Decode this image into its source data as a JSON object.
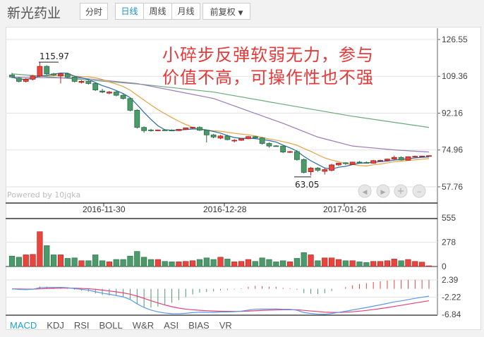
{
  "header": {
    "title": "新光药业",
    "intraday": "分时",
    "daily": "日线",
    "weekly": "周线",
    "monthly": "月线",
    "adjust": "前复权"
  },
  "annotation": {
    "line1": "小碎步反弹软弱无力，参与",
    "line2": "价值不高，可操作性也不强"
  },
  "watermark": "Powered by 10jqka",
  "colors": {
    "up": "#e8453c",
    "down": "#4a9a6a",
    "ma5": "#2a6aa8",
    "ma10": "#e8a040",
    "ma20": "#9a7ab8",
    "ma60": "#6aaa7a",
    "dif": "#5a9ae8",
    "dea": "#e8407a"
  },
  "price_axis": {
    "ticks": [
      "126.55",
      "109.36",
      "92.16",
      "74.96",
      "57.76"
    ],
    "max": 126.55,
    "min": 57.76
  },
  "date_axis": [
    "2016-11-30",
    "2016-12-28",
    "2017-01-26"
  ],
  "high_label": "115.97",
  "low_label": "63.05",
  "volume_axis": {
    "ticks": [
      "555",
      "278",
      "0"
    ]
  },
  "macd_axis": {
    "ticks": [
      "2.39",
      "-2.22",
      "-6.84"
    ]
  },
  "chart_data": {
    "type": "candlestick",
    "ohlc": [
      [
        110,
        111,
        108.5,
        109
      ],
      [
        108.5,
        109,
        106.5,
        107
      ],
      [
        107,
        108.5,
        106.5,
        108
      ],
      [
        108,
        110,
        107.5,
        109.5
      ],
      [
        109.5,
        115.97,
        109,
        114
      ],
      [
        114,
        114.5,
        110,
        110.5
      ],
      [
        110.5,
        111,
        109.5,
        110
      ],
      [
        109.5,
        111,
        106,
        110.5
      ],
      [
        110.5,
        111,
        108.5,
        109
      ],
      [
        109,
        109.5,
        106.5,
        107
      ],
      [
        106.5,
        107.5,
        106,
        107
      ],
      [
        107,
        107.5,
        105.5,
        106
      ],
      [
        106,
        106.5,
        102.5,
        103
      ],
      [
        102.5,
        103.5,
        101.5,
        102
      ],
      [
        101.5,
        102.5,
        101,
        102
      ],
      [
        102,
        102.5,
        100,
        100.5
      ],
      [
        100.5,
        101,
        98.5,
        99
      ],
      [
        99,
        99.5,
        93,
        93.5
      ],
      [
        93.5,
        94,
        85,
        85.5
      ],
      [
        85.5,
        86,
        83,
        84
      ],
      [
        84.3,
        84.8,
        83.5,
        84.1
      ],
      [
        84,
        84.5,
        83.8,
        84.3
      ],
      [
        84.3,
        84.6,
        84,
        84.2
      ],
      [
        84.2,
        84.6,
        83.9,
        84.1
      ],
      [
        84,
        84.8,
        83.8,
        84.6
      ],
      [
        84.6,
        85.5,
        84.3,
        85.3
      ],
      [
        85.3,
        85.8,
        84.9,
        85.5
      ],
      [
        85.5,
        86,
        83.8,
        84.2
      ],
      [
        84.2,
        84.5,
        78.5,
        82
      ],
      [
        82,
        82.5,
        80.5,
        81
      ],
      [
        80.5,
        82,
        80,
        81.5
      ],
      [
        81.5,
        82,
        79.5,
        79.8
      ],
      [
        79.5,
        80,
        78.5,
        79.5
      ],
      [
        79.5,
        80.5,
        79.2,
        80.2
      ],
      [
        80.2,
        81.5,
        80,
        81.2
      ],
      [
        81.2,
        81.5,
        80.5,
        80.6
      ],
      [
        80.6,
        81,
        77.5,
        78
      ],
      [
        78,
        78.5,
        76,
        76.8
      ],
      [
        76.9,
        77.2,
        76.5,
        76.8
      ],
      [
        76.8,
        77,
        73.5,
        74
      ],
      [
        74,
        74.5,
        73.6,
        74.2
      ],
      [
        74.2,
        74.8,
        70,
        70.5
      ],
      [
        70.5,
        71,
        64,
        64.5
      ],
      [
        64.8,
        67,
        63.05,
        66.5
      ],
      [
        66.5,
        67,
        64.8,
        65.5
      ],
      [
        65,
        66.5,
        63.5,
        65.8
      ],
      [
        65.5,
        68.5,
        65,
        68
      ],
      [
        68,
        69,
        67.5,
        68.8
      ],
      [
        69,
        69.2,
        68,
        68.6
      ],
      [
        68.2,
        69.5,
        68,
        69.3
      ],
      [
        69.3,
        69.8,
        68.8,
        69.2
      ],
      [
        69.1,
        69.6,
        68.6,
        68.9
      ],
      [
        68.8,
        70.3,
        68.6,
        70
      ],
      [
        70,
        70.4,
        69.6,
        70.1
      ],
      [
        70,
        71,
        69.8,
        70.7
      ],
      [
        70.7,
        72.3,
        70.3,
        71.5
      ],
      [
        71.5,
        72,
        70,
        70.3
      ],
      [
        70.2,
        72,
        70,
        71.8
      ],
      [
        71.8,
        72.3,
        71.5,
        72
      ],
      [
        72,
        72.3,
        71.8,
        72.1
      ],
      [
        72.3,
        72.5,
        72.2,
        72.3
      ]
    ],
    "volume": [
      119,
      106,
      133,
      138,
      397,
      238,
      133,
      133,
      93,
      98,
      66,
      66,
      133,
      66,
      53,
      80,
      80,
      119,
      172,
      106,
      80,
      80,
      58,
      53,
      53,
      58,
      66,
      80,
      98,
      80,
      106,
      85,
      53,
      58,
      80,
      58,
      98,
      80,
      53,
      66,
      53,
      93,
      159,
      133,
      66,
      98,
      98,
      80,
      66,
      66,
      53,
      45,
      58,
      58,
      66,
      85,
      66,
      80,
      58,
      50,
      8
    ],
    "ma20": [
      [
        0,
        109
      ],
      [
        10,
        108.5
      ],
      [
        18,
        106
      ],
      [
        29,
        99
      ],
      [
        39,
        87.4
      ],
      [
        44,
        81
      ],
      [
        49,
        76.8
      ],
      [
        55,
        75
      ],
      [
        60,
        74
      ]
    ],
    "ma60": [
      [
        0,
        110.5
      ],
      [
        19,
        105.5
      ],
      [
        29,
        102
      ],
      [
        39,
        96.3
      ],
      [
        49,
        90.7
      ],
      [
        60,
        85.5
      ]
    ],
    "volume_range": [
      0,
      555
    ],
    "macd_range": [
      -6.84,
      2.39
    ]
  },
  "indicator_tabs": [
    "MACD",
    "KDJ",
    "RSI",
    "BOLL",
    "W&R",
    "ASI",
    "BIAS",
    "VR"
  ]
}
